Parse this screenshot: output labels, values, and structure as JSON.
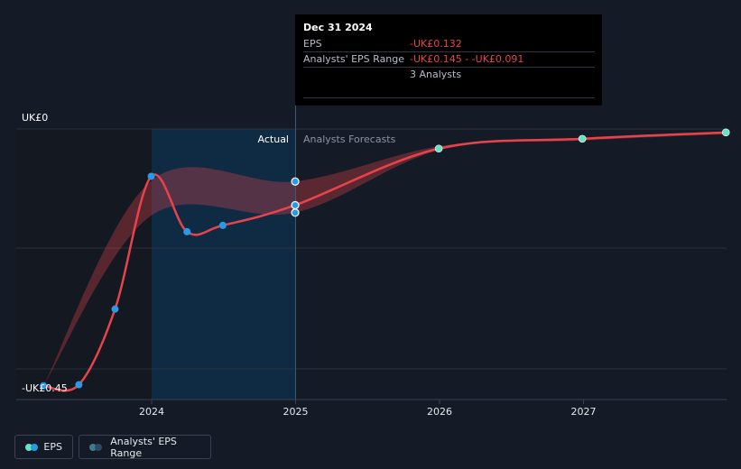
{
  "chart_data": {
    "type": "line",
    "currency_prefix": "UK£",
    "y_top_label": "UK£0",
    "y_bottom_label": "-UK£0.45",
    "ylim": [
      -0.45,
      0
    ],
    "x_tick_labels": [
      "2024",
      "2025",
      "2026",
      "2027"
    ],
    "region_labels": {
      "actual": "Actual",
      "forecast": "Analysts Forecasts"
    },
    "series": [
      {
        "name": "EPS",
        "points": [
          {
            "x": "2023-04-01",
            "y": -0.445
          },
          {
            "x": "2023-06-30",
            "y": -0.443
          },
          {
            "x": "2023-09-30",
            "y": -0.312
          },
          {
            "x": "2023-12-31",
            "y": -0.082
          },
          {
            "x": "2024-03-31",
            "y": -0.178
          },
          {
            "x": "2024-06-30",
            "y": -0.167
          },
          {
            "x": "2024-12-31",
            "y": -0.132
          },
          {
            "x": "2025-12-31",
            "y": -0.034
          },
          {
            "x": "2026-12-31",
            "y": -0.017
          },
          {
            "x": "2027-12-31",
            "y": -0.006
          }
        ]
      }
    ],
    "range": {
      "name": "Analysts' EPS Range",
      "points": [
        {
          "x": "2023-04-01",
          "low": -0.445,
          "high": -0.445
        },
        {
          "x": "2023-12-31",
          "low": -0.15,
          "high": -0.09
        },
        {
          "x": "2024-12-31",
          "low": -0.145,
          "high": -0.091
        },
        {
          "x": "2025-12-31",
          "low": -0.037,
          "high": -0.03
        },
        {
          "x": "2026-12-31",
          "low": -0.02,
          "high": -0.015
        },
        {
          "x": "2027-12-31",
          "low": -0.009,
          "high": -0.004
        }
      ]
    },
    "colors": {
      "eps": "#e8434b",
      "actual_dot": "#2b9ae6",
      "forecast_dot": "#66e3c4",
      "range_fill": "#e8434b",
      "actual_highlight": "#0f2b44",
      "grid": "#2a303b"
    }
  },
  "tooltip": {
    "date": "Dec 31 2024",
    "eps_label": "EPS",
    "eps_value": "-UK£0.132",
    "range_label": "Analysts' EPS Range",
    "range_value": "-UK£0.145 - -UK£0.091",
    "analysts": "3 Analysts"
  },
  "legend": {
    "eps": "EPS",
    "range": "Analysts' EPS Range"
  }
}
